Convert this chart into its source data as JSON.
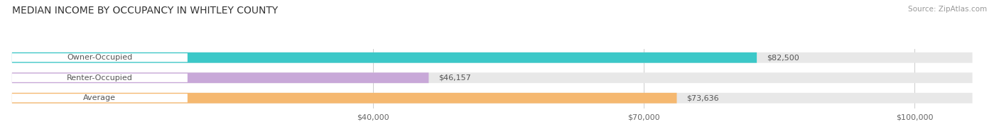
{
  "title": "MEDIAN INCOME BY OCCUPANCY IN WHITLEY COUNTY",
  "source": "Source: ZipAtlas.com",
  "categories": [
    "Owner-Occupied",
    "Renter-Occupied",
    "Average"
  ],
  "values": [
    82500,
    46157,
    73636
  ],
  "bar_colors": [
    "#3cc8c8",
    "#c8a8d8",
    "#f5b870"
  ],
  "bar_labels": [
    "$82,500",
    "$46,157",
    "$73,636"
  ],
  "x_ticks": [
    40000,
    70000,
    100000
  ],
  "x_tick_labels": [
    "$40,000",
    "$70,000",
    "$100,000"
  ],
  "xlim": [
    0,
    108000
  ],
  "bar_background_color": "#e8e8e8",
  "title_fontsize": 10,
  "source_fontsize": 7.5,
  "label_fontsize": 8,
  "bar_height": 0.52
}
